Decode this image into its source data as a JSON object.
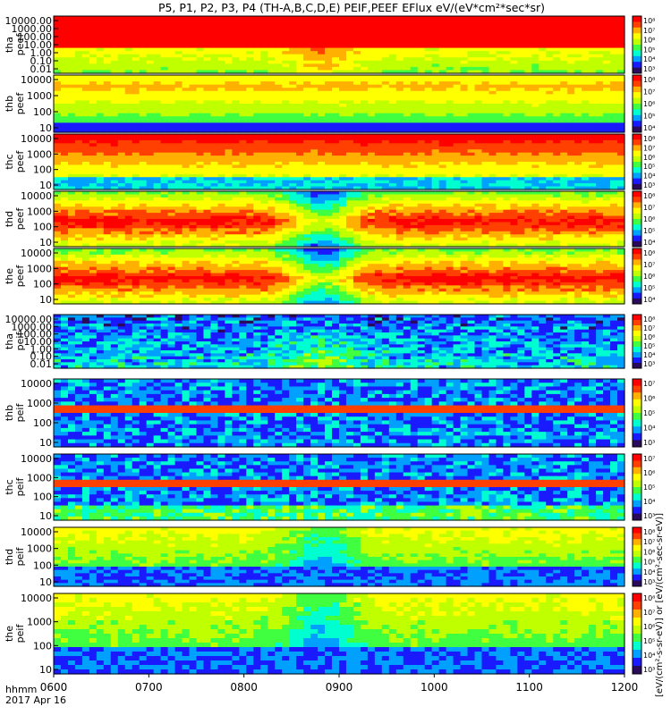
{
  "title": "P5, P1, P2, P3, P4 (TH-A,B,C,D,E) PEIF,PEEF EFlux eV/(eV*cm²*sec*sr)",
  "footer": {
    "time_label": "hhmm",
    "date_label": "2017 Apr 16"
  },
  "colorbar_label": "[eV/(cm²-s-sr-eV)] or [eV/(cm²-sec-sr-eV)]",
  "chart_data": [
    {
      "type": "heatmap",
      "ylabel": "tha\npeef",
      "yticks": [
        "10000.00",
        "1000.00",
        "100.00",
        "10.00",
        "1.00",
        "0.10",
        "0.01"
      ],
      "cbar_ticks": [
        "10⁸",
        "10⁷",
        "10⁶",
        "10⁵",
        "10⁴",
        "10³"
      ],
      "profile": "tha_peef"
    },
    {
      "type": "heatmap",
      "ylabel": "thb\npeef",
      "yticks": [
        "10000",
        "1000",
        "100",
        "10"
      ],
      "cbar_ticks": [
        "10⁸",
        "10⁷",
        "10⁶",
        "10⁵",
        "10⁴"
      ],
      "profile": "thb_peef"
    },
    {
      "type": "heatmap",
      "ylabel": "thc\npeef",
      "yticks": [
        "10000",
        "1000",
        "100",
        "10"
      ],
      "cbar_ticks": [
        "10⁸",
        "10⁷",
        "10⁶",
        "10⁵",
        "10⁴",
        "10³"
      ],
      "profile": "thc_peef"
    },
    {
      "type": "heatmap",
      "ylabel": "thd\npeef",
      "yticks": [
        "10000",
        "1000",
        "100",
        "10"
      ],
      "cbar_ticks": [
        "10⁸",
        "10⁷",
        "10⁶",
        "10⁵",
        "10⁴"
      ],
      "profile": "thd_peef"
    },
    {
      "type": "heatmap",
      "ylabel": "the\npeef",
      "yticks": [
        "10000",
        "1000",
        "100",
        "10"
      ],
      "cbar_ticks": [
        "10⁸",
        "10⁷",
        "10⁶",
        "10⁵",
        "10⁴"
      ],
      "profile": "the_peef"
    },
    {
      "type": "heatmap",
      "ylabel": "tha\npeif",
      "yticks": [
        "10000.00",
        "1000.00",
        "100.00",
        "10.00",
        "1.00",
        "0.10",
        "0.01"
      ],
      "cbar_ticks": [
        "10⁸",
        "10⁷",
        "10⁶",
        "10⁵",
        "10⁴",
        "10³"
      ],
      "profile": "tha_peif"
    },
    {
      "type": "heatmap",
      "ylabel": "thb\npeif",
      "yticks": [
        "10000",
        "1000",
        "100",
        "10"
      ],
      "cbar_ticks": [
        "10⁷",
        "10⁶",
        "10⁵",
        "10⁴",
        "10³"
      ],
      "profile": "thb_peif"
    },
    {
      "type": "heatmap",
      "ylabel": "thc\npeif",
      "yticks": [
        "10000",
        "1000",
        "100",
        "10"
      ],
      "cbar_ticks": [
        "10⁷",
        "10⁶",
        "10⁵",
        "10⁴",
        "10³"
      ],
      "profile": "thc_peif"
    },
    {
      "type": "heatmap",
      "ylabel": "thd\npeif",
      "yticks": [
        "10000",
        "1000",
        "100",
        "10"
      ],
      "cbar_ticks": [
        "10⁸",
        "10⁷",
        "10⁶",
        "10⁵",
        "10⁴",
        "10³"
      ],
      "profile": "thd_peif"
    },
    {
      "type": "heatmap",
      "ylabel": "the\npeif",
      "yticks": [
        "10000",
        "1000",
        "100",
        "10"
      ],
      "cbar_ticks": [
        "10⁸",
        "10⁷",
        "10⁶",
        "10⁵",
        "10⁴",
        "10³"
      ],
      "profile": "the_peif"
    }
  ],
  "x_axis": {
    "ticks": [
      "0600",
      "0700",
      "0800",
      "0900",
      "1000",
      "1100",
      "1200"
    ],
    "range": [
      "0600",
      "1200"
    ]
  },
  "colors": {
    "scale": [
      "#2a0a5a",
      "#1a1aff",
      "#00a0ff",
      "#00ffd0",
      "#40ff40",
      "#c0ff00",
      "#ffff00",
      "#ffb000",
      "#ff4000",
      "#ff0000"
    ]
  }
}
